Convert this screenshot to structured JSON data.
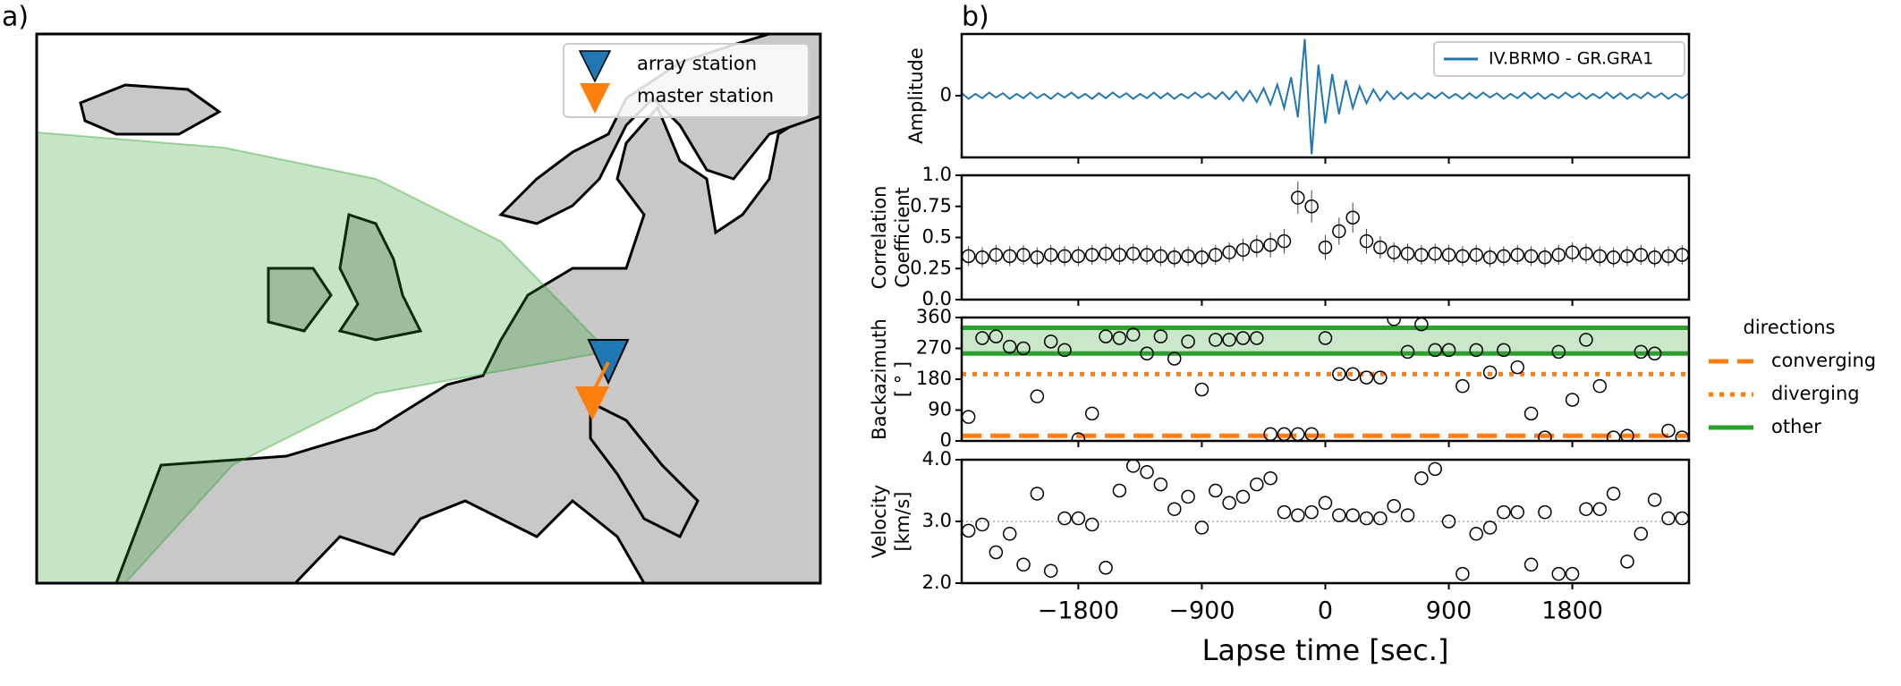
{
  "panel_labels": [
    "a)",
    "b)"
  ],
  "map": {
    "legend": [
      {
        "name": "array station",
        "color": "#1f77b4"
      },
      {
        "name": "master station",
        "color": "#ff7f0e"
      }
    ]
  },
  "chart_data": [
    {
      "type": "line",
      "ylabel": "Amplitude",
      "xlim": [
        -2650,
        2650
      ],
      "ylim": [
        -1,
        1
      ],
      "yticks": [
        0
      ],
      "series": [
        {
          "name": "IV.BRMO - GR.GRA1",
          "color": "#1f77b4",
          "x": [
            -2650,
            -2600,
            -2550,
            -2500,
            -2450,
            -2400,
            -2350,
            -2300,
            -2250,
            -2200,
            -2150,
            -2100,
            -2050,
            -2000,
            -1950,
            -1900,
            -1850,
            -1800,
            -1750,
            -1700,
            -1650,
            -1600,
            -1550,
            -1500,
            -1450,
            -1400,
            -1350,
            -1300,
            -1250,
            -1200,
            -1150,
            -1100,
            -1050,
            -1000,
            -950,
            -900,
            -850,
            -800,
            -750,
            -700,
            -650,
            -600,
            -550,
            -500,
            -450,
            -400,
            -350,
            -300,
            -250,
            -200,
            -150,
            -100,
            -50,
            0,
            50,
            100,
            150,
            200,
            250,
            300,
            350,
            400,
            450,
            500,
            550,
            600,
            650,
            700,
            750,
            800,
            850,
            900,
            950,
            1000,
            1050,
            1100,
            1150,
            1200,
            1250,
            1300,
            1350,
            1400,
            1450,
            1500,
            1550,
            1600,
            1650,
            1700,
            1750,
            1800,
            1850,
            1900,
            1950,
            2000,
            2050,
            2100,
            2150,
            2200,
            2250,
            2300,
            2350,
            2400,
            2450,
            2500,
            2550,
            2600,
            2650
          ],
          "values": [
            0.04,
            -0.05,
            0.03,
            -0.04,
            0.05,
            -0.03,
            0.04,
            -0.05,
            0.03,
            -0.04,
            0.05,
            -0.04,
            0.03,
            -0.05,
            0.04,
            -0.03,
            0.05,
            -0.04,
            0.03,
            -0.05,
            0.04,
            -0.04,
            0.05,
            -0.03,
            0.04,
            -0.05,
            0.03,
            -0.04,
            0.05,
            -0.04,
            0.04,
            -0.05,
            0.03,
            -0.04,
            0.05,
            -0.03,
            0.04,
            -0.05,
            0.06,
            -0.06,
            0.07,
            -0.08,
            0.08,
            -0.1,
            0.12,
            -0.14,
            0.18,
            -0.2,
            0.3,
            -0.35,
            0.92,
            -0.95,
            0.5,
            -0.45,
            0.35,
            -0.3,
            0.25,
            -0.2,
            0.15,
            -0.12,
            0.1,
            -0.08,
            0.07,
            -0.06,
            0.05,
            -0.05,
            0.04,
            -0.05,
            0.04,
            -0.04,
            0.05,
            -0.04,
            0.03,
            -0.05,
            0.04,
            -0.04,
            0.05,
            -0.03,
            0.04,
            -0.05,
            0.03,
            -0.04,
            0.05,
            -0.04,
            0.04,
            -0.05,
            0.03,
            -0.04,
            0.05,
            -0.03,
            0.04,
            -0.05,
            0.03,
            -0.04,
            0.05,
            -0.04,
            0.04,
            -0.05,
            0.03,
            -0.04,
            0.05,
            -0.03,
            0.04,
            -0.05,
            0.03,
            -0.04,
            0.04
          ]
        }
      ]
    },
    {
      "type": "errorbar",
      "ylabel": [
        "Correlation",
        "Coefficient"
      ],
      "xlim": [
        -2650,
        2650
      ],
      "ylim": [
        0,
        1
      ],
      "yticks": [
        {
          "value": 0,
          "label": "0.0"
        },
        0.25,
        0.5,
        0.75,
        {
          "value": 1,
          "label": "1.0"
        }
      ],
      "x": [
        -2600,
        -2500,
        -2400,
        -2300,
        -2200,
        -2100,
        -2000,
        -1900,
        -1800,
        -1700,
        -1600,
        -1500,
        -1400,
        -1300,
        -1200,
        -1100,
        -1000,
        -900,
        -800,
        -700,
        -600,
        -500,
        -400,
        -300,
        -200,
        -100,
        0,
        100,
        200,
        300,
        400,
        500,
        600,
        700,
        800,
        900,
        1000,
        1100,
        1200,
        1300,
        1400,
        1500,
        1600,
        1700,
        1800,
        1900,
        2000,
        2100,
        2200,
        2300,
        2400,
        2500,
        2600
      ],
      "values": [
        0.35,
        0.34,
        0.36,
        0.35,
        0.36,
        0.34,
        0.36,
        0.35,
        0.35,
        0.36,
        0.37,
        0.36,
        0.37,
        0.36,
        0.35,
        0.34,
        0.35,
        0.34,
        0.36,
        0.38,
        0.4,
        0.43,
        0.44,
        0.47,
        0.82,
        0.75,
        0.42,
        0.55,
        0.66,
        0.47,
        0.42,
        0.38,
        0.37,
        0.36,
        0.37,
        0.36,
        0.35,
        0.36,
        0.34,
        0.35,
        0.36,
        0.35,
        0.34,
        0.36,
        0.38,
        0.37,
        0.35,
        0.34,
        0.35,
        0.36,
        0.34,
        0.35,
        0.36
      ],
      "errors": [
        0.08,
        0.08,
        0.08,
        0.08,
        0.08,
        0.08,
        0.08,
        0.08,
        0.08,
        0.08,
        0.08,
        0.08,
        0.08,
        0.08,
        0.08,
        0.08,
        0.08,
        0.08,
        0.08,
        0.08,
        0.09,
        0.09,
        0.1,
        0.1,
        0.13,
        0.13,
        0.1,
        0.11,
        0.12,
        0.1,
        0.09,
        0.08,
        0.08,
        0.08,
        0.08,
        0.08,
        0.08,
        0.08,
        0.08,
        0.08,
        0.08,
        0.08,
        0.08,
        0.08,
        0.08,
        0.08,
        0.08,
        0.08,
        0.08,
        0.08,
        0.08,
        0.08,
        0.08
      ]
    },
    {
      "type": "scatter",
      "ylabel": [
        "Backazimuth",
        "[ ° ]"
      ],
      "xlim": [
        -2650,
        2650
      ],
      "ylim": [
        0,
        360
      ],
      "yticks": [
        0,
        90,
        180,
        270,
        360
      ],
      "x": [
        -2600,
        -2500,
        -2400,
        -2300,
        -2200,
        -2100,
        -2000,
        -1900,
        -1800,
        -1700,
        -1600,
        -1500,
        -1400,
        -1300,
        -1200,
        -1100,
        -1000,
        -900,
        -800,
        -700,
        -600,
        -500,
        -400,
        -300,
        -200,
        -100,
        0,
        100,
        200,
        300,
        400,
        500,
        600,
        700,
        800,
        900,
        1000,
        1100,
        1200,
        1300,
        1400,
        1500,
        1600,
        1700,
        1800,
        1900,
        2000,
        2100,
        2200,
        2300,
        2400,
        2500,
        2600
      ],
      "values": [
        70,
        300,
        305,
        275,
        270,
        130,
        290,
        265,
        5,
        80,
        305,
        300,
        310,
        255,
        305,
        240,
        290,
        150,
        295,
        295,
        300,
        300,
        20,
        20,
        20,
        20,
        300,
        195,
        195,
        185,
        185,
        355,
        260,
        340,
        265,
        265,
        160,
        265,
        200,
        265,
        215,
        80,
        10,
        260,
        120,
        295,
        160,
        10,
        15,
        260,
        255,
        30,
        10
      ],
      "legend_title": "directions",
      "reference_lines": [
        {
          "name": "converging",
          "color": "#ff7f0e",
          "style": "dashed",
          "values": [
            15
          ]
        },
        {
          "name": "diverging",
          "color": "#ff7f0e",
          "style": "dotted",
          "values": [
            195
          ]
        },
        {
          "name": "other",
          "color": "#2ca02c",
          "style": "solid",
          "values": [
            255,
            330
          ]
        }
      ]
    },
    {
      "type": "scatter",
      "ylabel": [
        "Velocity",
        "[km/s]"
      ],
      "xlabel": "Lapse time [sec.]",
      "xlim": [
        -2650,
        2650
      ],
      "ylim": [
        2,
        4
      ],
      "yticks": [
        {
          "value": 2,
          "label": "2.0"
        },
        {
          "value": 3,
          "label": "3.0"
        },
        {
          "value": 4,
          "label": "4.0"
        }
      ],
      "xticks": [
        {
          "value": -1800,
          "label": "−1800"
        },
        {
          "value": -900,
          "label": "−900"
        },
        0,
        900,
        1800
      ],
      "hline": 3,
      "x": [
        -2600,
        -2500,
        -2400,
        -2300,
        -2200,
        -2100,
        -2000,
        -1900,
        -1800,
        -1700,
        -1600,
        -1500,
        -1400,
        -1300,
        -1200,
        -1100,
        -1000,
        -900,
        -800,
        -700,
        -600,
        -500,
        -400,
        -300,
        -200,
        -100,
        0,
        100,
        200,
        300,
        400,
        500,
        600,
        700,
        800,
        900,
        1000,
        1100,
        1200,
        1300,
        1400,
        1500,
        1600,
        1700,
        1800,
        1900,
        2000,
        2100,
        2200,
        2300,
        2400,
        2500,
        2600
      ],
      "values": [
        2.85,
        2.95,
        2.5,
        2.8,
        2.3,
        3.45,
        2.2,
        3.05,
        3.05,
        2.95,
        2.25,
        3.5,
        3.9,
        3.8,
        3.6,
        3.2,
        3.4,
        2.9,
        3.5,
        3.3,
        3.4,
        3.6,
        3.7,
        3.15,
        3.1,
        3.15,
        3.3,
        3.1,
        3.1,
        3.05,
        3.05,
        3.25,
        3.1,
        3.7,
        3.85,
        3.0,
        2.15,
        2.8,
        2.9,
        3.15,
        3.15,
        2.3,
        3.15,
        2.15,
        2.15,
        3.2,
        3.2,
        3.45,
        2.35,
        2.8,
        3.35,
        3.05,
        3.05
      ]
    }
  ]
}
